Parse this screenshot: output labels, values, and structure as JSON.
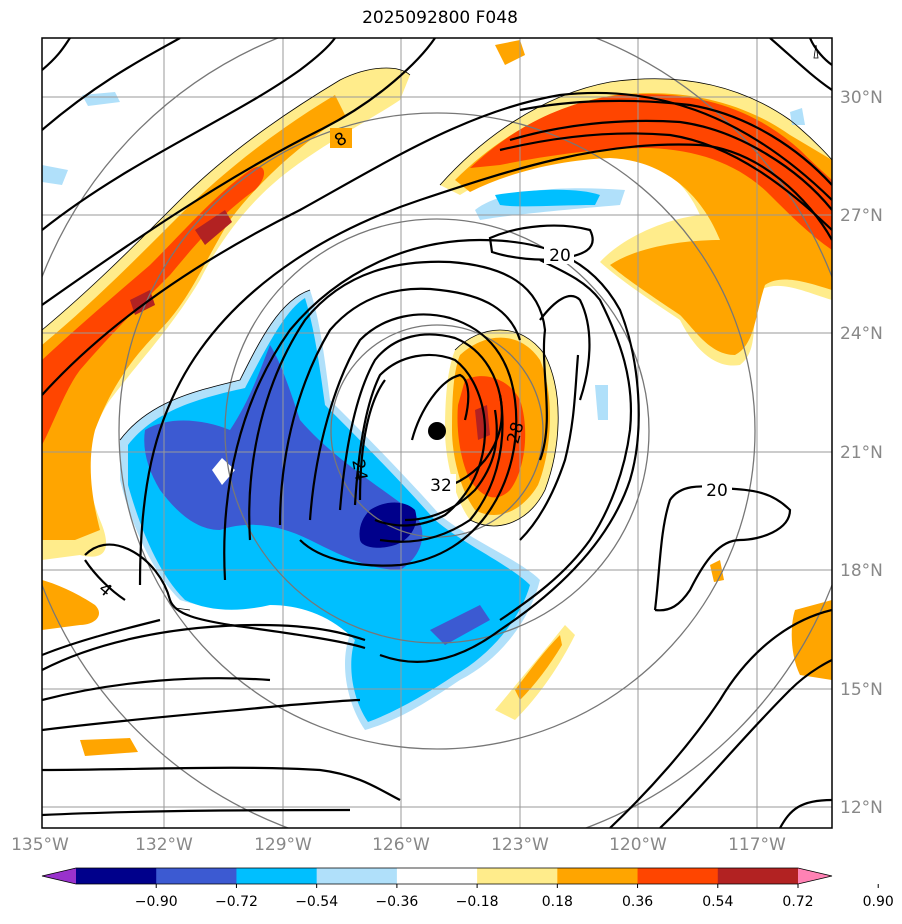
{
  "title": "2025092800 F048",
  "map": {
    "lon_ticks": [
      "135°W",
      "132°W",
      "129°W",
      "126°W",
      "123°W",
      "120°W",
      "117°W"
    ],
    "lat_ticks": [
      "30°N",
      "27°N",
      "24°N",
      "21°N",
      "18°N",
      "15°N",
      "12°N"
    ],
    "center_marker": {
      "lon": -125.0,
      "lat": 21.5
    },
    "contour_labels": [
      "8",
      "20",
      "28",
      "24",
      "32",
      "20",
      "4"
    ]
  },
  "colorbar": {
    "ticks": [
      "−0.90",
      "−0.72",
      "−0.54",
      "−0.36",
      "−0.18",
      "0.18",
      "0.36",
      "0.54",
      "0.72",
      "0.90"
    ],
    "colors": [
      "#9932cc",
      "#00008b",
      "#3c5ad2",
      "#00bfff",
      "#b0e0fa",
      "#ffffff",
      "#ffec8b",
      "#ffa500",
      "#ff4500",
      "#b22222",
      "#ff82b4"
    ],
    "extend": "both"
  },
  "colors": {
    "pos_light": "#ffec8b",
    "pos_mid": "#ffa500",
    "pos_strong": "#ff4500",
    "pos_max": "#b22222",
    "neg_light": "#b0e0fa",
    "neg_mid": "#00bfff",
    "neg_strong": "#3c5ad2",
    "neg_max": "#00008b",
    "grid": "#999999",
    "rings": "#777777"
  }
}
